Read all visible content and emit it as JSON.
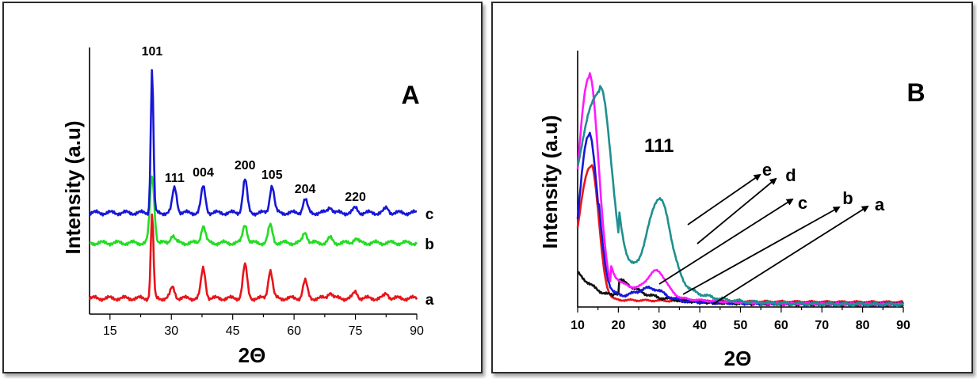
{
  "chart_data": [
    {
      "panel_label": "A",
      "type": "line",
      "xlabel": "2Θ",
      "ylabel": "Intensity (a.u)",
      "xlim": [
        10,
        90
      ],
      "xticks": [
        15,
        30,
        45,
        60,
        75,
        90
      ],
      "yticks_shown": false,
      "grid": false,
      "series": [
        {
          "name": "a",
          "color": "#e8141b",
          "offset": 0,
          "peaks": [
            [
              25.3,
              108
            ],
            [
              30.3,
              14
            ],
            [
              37.8,
              38
            ],
            [
              48.0,
              42
            ],
            [
              54.2,
              36
            ],
            [
              62.7,
              22
            ],
            [
              68.8,
              8
            ],
            [
              75.0,
              8
            ],
            [
              82.6,
              6
            ]
          ]
        },
        {
          "name": "b",
          "color": "#22dd22",
          "offset": 70,
          "peaks": [
            [
              25.3,
              85
            ],
            [
              30.3,
              10
            ],
            [
              37.8,
              22
            ],
            [
              48.0,
              24
            ],
            [
              54.2,
              22
            ],
            [
              62.7,
              14
            ],
            [
              68.8,
              6
            ],
            [
              75.0,
              6
            ]
          ]
        },
        {
          "name": "c",
          "color": "#1717d6",
          "offset": 108,
          "peaks": [
            [
              25.3,
              182
            ],
            [
              30.8,
              32
            ],
            [
              37.8,
              33
            ],
            [
              48.0,
              42
            ],
            [
              54.6,
              35
            ],
            [
              62.7,
              17
            ],
            [
              68.8,
              8
            ],
            [
              75.0,
              6
            ],
            [
              82.6,
              6
            ]
          ]
        }
      ],
      "peak_labels": [
        {
          "text": "101",
          "x": 25.3
        },
        {
          "text": "111",
          "x": 30.8
        },
        {
          "text": "004",
          "x": 37.8
        },
        {
          "text": "200",
          "x": 48.0
        },
        {
          "text": "105",
          "x": 54.6
        },
        {
          "text": "204",
          "x": 62.7
        },
        {
          "text": "220",
          "x": 75.0
        }
      ]
    },
    {
      "panel_label": "B",
      "type": "line",
      "xlabel": "2Θ",
      "ylabel": "Intensity (a.u)",
      "xlim": [
        10,
        90
      ],
      "xticks": [
        10,
        20,
        30,
        40,
        50,
        60,
        70,
        80,
        90
      ],
      "yticks_shown": false,
      "grid": false,
      "series": [
        {
          "name": "a",
          "color": "#e8141b",
          "start": 95,
          "peak_x": 13.3,
          "peak_h": 172,
          "width": 2.6,
          "tail": 4
        },
        {
          "name": "b",
          "color": "#111111",
          "start": 40,
          "peak_x": 19.0,
          "peak_h": 12,
          "width": 6,
          "tail": 4
        },
        {
          "name": "c",
          "color": "#1717d6",
          "start": 110,
          "peak_x": 12.8,
          "peak_h": 213,
          "width": 3.0,
          "tail": 5
        },
        {
          "name": "d",
          "color": "#ff19ff",
          "start": 170,
          "peak_x": 12.8,
          "peak_h": 288,
          "width": 3.3,
          "tail": 6
        },
        {
          "name": "e",
          "color": "#1f8f8f",
          "start": 175,
          "peak_x": 15.5,
          "peak_h": 270,
          "width": 4.2,
          "tail": 6
        }
      ],
      "peak_labels": [
        {
          "text": "111",
          "x": 30
        }
      ]
    }
  ]
}
